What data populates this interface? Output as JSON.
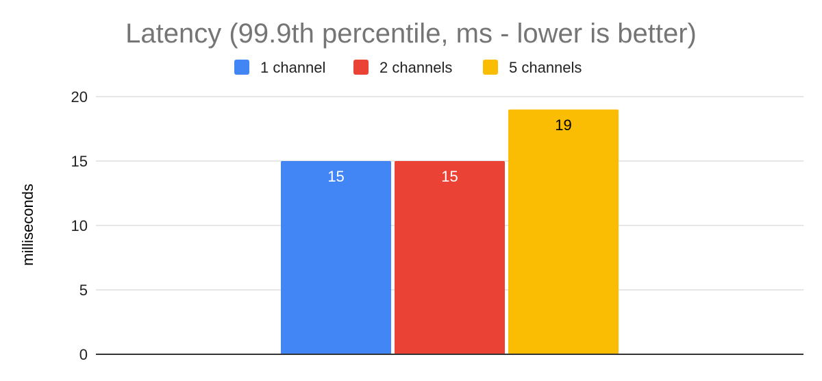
{
  "chart_data": {
    "type": "bar",
    "title": "Latency (99.9th percentile, ms - lower is better)",
    "xlabel": "",
    "ylabel": "milliseconds",
    "ylim": [
      0,
      20
    ],
    "yticks": [
      "0",
      "5",
      "10",
      "15",
      "20"
    ],
    "grid": true,
    "legend_position": "top",
    "categories": [
      ""
    ],
    "series": [
      {
        "name": "1 channel",
        "values": [
          15
        ],
        "label": "15",
        "color": "#4285F4",
        "label_color": "#ffffff"
      },
      {
        "name": "2 channels",
        "values": [
          15
        ],
        "label": "15",
        "color": "#EA4335",
        "label_color": "#ffffff"
      },
      {
        "name": "5 channels",
        "values": [
          19
        ],
        "label": "19",
        "color": "#FBBC04",
        "label_color": "#000000"
      }
    ]
  },
  "colors": {
    "title": "#757575",
    "gridline": "#cccccc",
    "axis_line": "#333333",
    "tick_text": "#222222"
  }
}
